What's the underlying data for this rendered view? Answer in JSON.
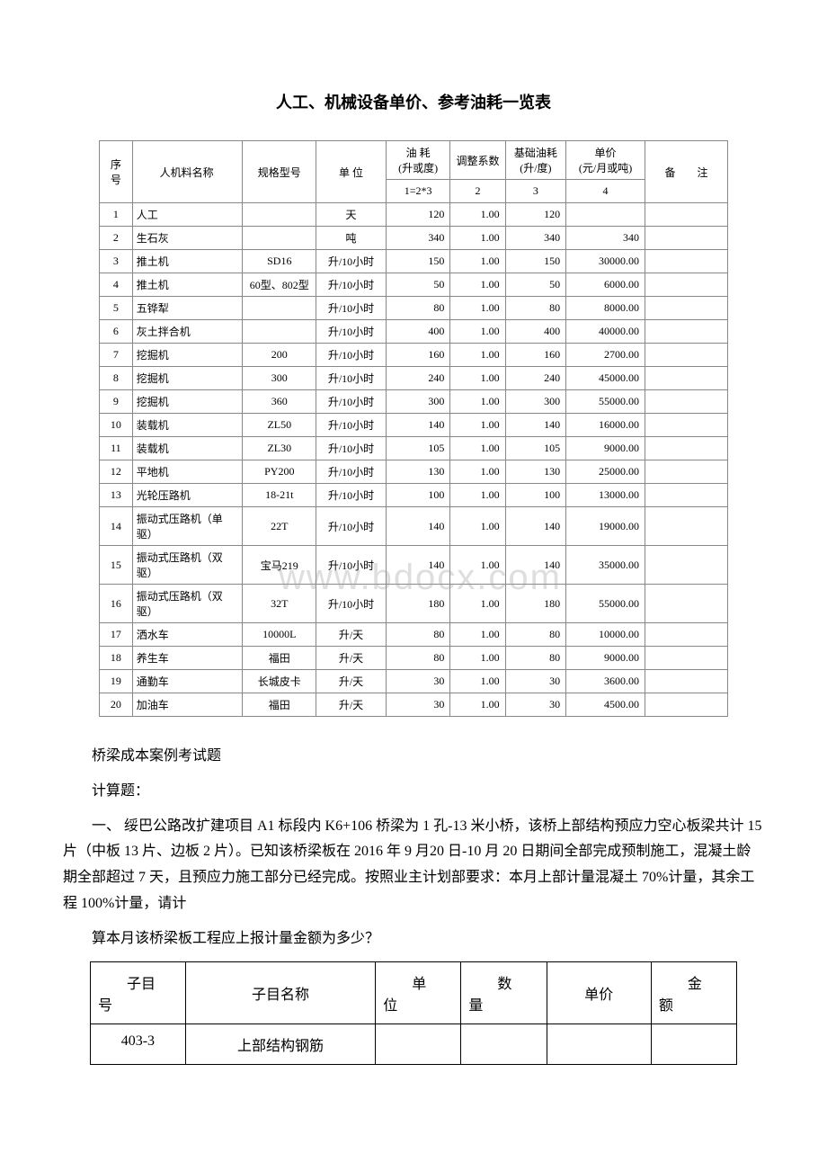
{
  "title": "人工、机械设备单价、参考油耗一览表",
  "main_table": {
    "headers": {
      "seq": "序号",
      "name": "人机料名称",
      "spec": "规格型号",
      "unit": "单 位",
      "fuel": "油 耗\n(升或度)",
      "adj": "调整系数",
      "base": "基础油耗\n(升/度)",
      "price": "单价\n(元/月或吨)",
      "note": "备　　注"
    },
    "subheaders": {
      "fuel": "1=2*3",
      "adj": "2",
      "base": "3",
      "price": "4"
    },
    "rows": [
      {
        "seq": "1",
        "name": "人工",
        "spec": "",
        "unit": "天",
        "fuel": "120",
        "adj": "1.00",
        "base": "120",
        "price": ""
      },
      {
        "seq": "2",
        "name": "生石灰",
        "spec": "",
        "unit": "吨",
        "fuel": "340",
        "adj": "1.00",
        "base": "340",
        "price": "340"
      },
      {
        "seq": "3",
        "name": "推土机",
        "spec": "SD16",
        "unit": "升/10小时",
        "fuel": "150",
        "adj": "1.00",
        "base": "150",
        "price": "30000.00"
      },
      {
        "seq": "4",
        "name": "推土机",
        "spec": "60型、802型",
        "unit": "升/10小时",
        "fuel": "50",
        "adj": "1.00",
        "base": "50",
        "price": "6000.00"
      },
      {
        "seq": "5",
        "name": "五铧犁",
        "spec": "",
        "unit": "升/10小时",
        "fuel": "80",
        "adj": "1.00",
        "base": "80",
        "price": "8000.00"
      },
      {
        "seq": "6",
        "name": "灰土拌合机",
        "spec": "",
        "unit": "升/10小时",
        "fuel": "400",
        "adj": "1.00",
        "base": "400",
        "price": "40000.00"
      },
      {
        "seq": "7",
        "name": "挖掘机",
        "spec": "200",
        "unit": "升/10小时",
        "fuel": "160",
        "adj": "1.00",
        "base": "160",
        "price": "2700.00"
      },
      {
        "seq": "8",
        "name": "挖掘机",
        "spec": "300",
        "unit": "升/10小时",
        "fuel": "240",
        "adj": "1.00",
        "base": "240",
        "price": "45000.00"
      },
      {
        "seq": "9",
        "name": "挖掘机",
        "spec": "360",
        "unit": "升/10小时",
        "fuel": "300",
        "adj": "1.00",
        "base": "300",
        "price": "55000.00"
      },
      {
        "seq": "10",
        "name": "装载机",
        "spec": "ZL50",
        "unit": "升/10小时",
        "fuel": "140",
        "adj": "1.00",
        "base": "140",
        "price": "16000.00"
      },
      {
        "seq": "11",
        "name": "装载机",
        "spec": "ZL30",
        "unit": "升/10小时",
        "fuel": "105",
        "adj": "1.00",
        "base": "105",
        "price": "9000.00"
      },
      {
        "seq": "12",
        "name": "平地机",
        "spec": "PY200",
        "unit": "升/10小时",
        "fuel": "130",
        "adj": "1.00",
        "base": "130",
        "price": "25000.00"
      },
      {
        "seq": "13",
        "name": "光轮压路机",
        "spec": "18-21t",
        "unit": "升/10小时",
        "fuel": "100",
        "adj": "1.00",
        "base": "100",
        "price": "13000.00"
      },
      {
        "seq": "14",
        "name": "振动式压路机（单驱）",
        "spec": "22T",
        "unit": "升/10小时",
        "fuel": "140",
        "adj": "1.00",
        "base": "140",
        "price": "19000.00"
      },
      {
        "seq": "15",
        "name": "振动式压路机（双驱）",
        "spec": "宝马219",
        "unit": "升/10小时",
        "fuel": "140",
        "adj": "1.00",
        "base": "140",
        "price": "35000.00"
      },
      {
        "seq": "16",
        "name": "振动式压路机（双驱）",
        "spec": "32T",
        "unit": "升/10小时",
        "fuel": "180",
        "adj": "1.00",
        "base": "180",
        "price": "55000.00"
      },
      {
        "seq": "17",
        "name": "洒水车",
        "spec": "10000L",
        "unit": "升/天",
        "fuel": "80",
        "adj": "1.00",
        "base": "80",
        "price": "10000.00"
      },
      {
        "seq": "18",
        "name": "养生车",
        "spec": "福田",
        "unit": "升/天",
        "fuel": "80",
        "adj": "1.00",
        "base": "80",
        "price": "9000.00"
      },
      {
        "seq": "19",
        "name": "通勤车",
        "spec": "长城皮卡",
        "unit": "升/天",
        "fuel": "30",
        "adj": "1.00",
        "base": "30",
        "price": "3600.00"
      },
      {
        "seq": "20",
        "name": "加油车",
        "spec": "福田",
        "unit": "升/天",
        "fuel": "30",
        "adj": "1.00",
        "base": "30",
        "price": "4500.00"
      }
    ]
  },
  "paragraphs": {
    "p1": "桥梁成本案例考试题",
    "p2": "计算题：",
    "p3": "一、 绥巴公路改扩建项目 A1 标段内 K6+106 桥梁为 1 孔-13 米小桥，该桥上部结构预应力空心板梁共计 15 片（中板 13 片、边板 2 片）。已知该桥梁板在 2016 年 9 月20 日-10 月 20 日期间全部完成预制施工，混凝土龄期全部超过 7 天，且预应力施工部分已经完成。按照业主计划部要求：本月上部计量混凝土 70%计量，其余工程 100%计量，请计",
    "p4": "算本月该桥梁板工程应上报计量金额为多少？"
  },
  "second_table": {
    "headers": {
      "c1a": "子目",
      "c1b": "号",
      "c2": "子目名称",
      "c3a": "单",
      "c3b": "位",
      "c4a": "数",
      "c4b": "量",
      "c5": "单价",
      "c6a": "金",
      "c6b": "额"
    },
    "row": {
      "c1": "403-3",
      "c2": "上部结构钢筋",
      "c3": "",
      "c4": "",
      "c5": "",
      "c6": ""
    }
  },
  "watermark": "www.bdocx.com"
}
